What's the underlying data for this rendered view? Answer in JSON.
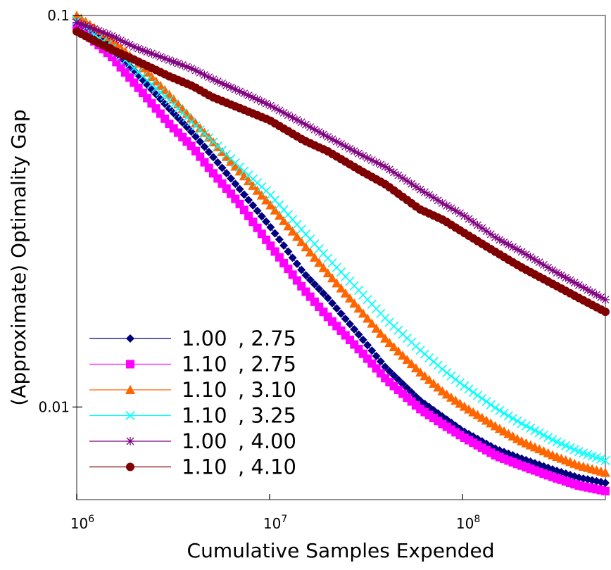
{
  "chart_data": {
    "type": "line",
    "title": "",
    "xlabel": "Cumulative Samples Expended",
    "ylabel": "(Approximate) Optimality Gap",
    "xscale": "log",
    "yscale": "log",
    "xlim": [
      1000000,
      550000000
    ],
    "ylim": [
      0.0058,
      0.1
    ],
    "x_ticks": [
      {
        "value": 1000000,
        "base": "10",
        "exp": "6"
      },
      {
        "value": 10000000,
        "base": "10",
        "exp": "7"
      },
      {
        "value": 100000000,
        "base": "10",
        "exp": "8"
      }
    ],
    "y_ticks": [
      {
        "value": 0.1,
        "label": "0.1"
      },
      {
        "value": 0.01,
        "label": "0.01"
      }
    ],
    "legend_position": "bottom-left",
    "series": [
      {
        "name_a": "1.00",
        "name_b": ", 2.75",
        "color": "#00007f",
        "marker": "diamond",
        "points": [
          [
            1000000,
            0.098
          ],
          [
            1500000,
            0.083
          ],
          [
            2000000,
            0.072
          ],
          [
            3000000,
            0.058
          ],
          [
            4000000,
            0.05
          ],
          [
            5000000,
            0.044
          ],
          [
            7000000,
            0.036
          ],
          [
            10000000,
            0.029
          ],
          [
            15000000,
            0.022
          ],
          [
            20000000,
            0.019
          ],
          [
            30000000,
            0.015
          ],
          [
            40000000,
            0.0126
          ],
          [
            60000000,
            0.0104
          ],
          [
            80000000,
            0.0094
          ],
          [
            100000000,
            0.0087
          ],
          [
            150000000,
            0.0078
          ],
          [
            200000000,
            0.0074
          ],
          [
            300000000,
            0.0069
          ],
          [
            400000000,
            0.0066
          ],
          [
            550000000,
            0.0064
          ]
        ]
      },
      {
        "name_a": "1.10",
        "name_b": ", 2.75",
        "color": "#ff00ff",
        "marker": "square",
        "points": [
          [
            1000000,
            0.094
          ],
          [
            1500000,
            0.079
          ],
          [
            2000000,
            0.067
          ],
          [
            3000000,
            0.053
          ],
          [
            4000000,
            0.046
          ],
          [
            5000000,
            0.04
          ],
          [
            7000000,
            0.033
          ],
          [
            10000000,
            0.026
          ],
          [
            15000000,
            0.02
          ],
          [
            20000000,
            0.017
          ],
          [
            30000000,
            0.0138
          ],
          [
            40000000,
            0.0118
          ],
          [
            60000000,
            0.0099
          ],
          [
            80000000,
            0.009
          ],
          [
            100000000,
            0.0084
          ],
          [
            150000000,
            0.0075
          ],
          [
            200000000,
            0.0071
          ],
          [
            300000000,
            0.0066
          ],
          [
            400000000,
            0.0063
          ],
          [
            550000000,
            0.0061
          ]
        ]
      },
      {
        "name_a": "1.10",
        "name_b": ", 3.10",
        "color": "#ff6600",
        "marker": "triangle",
        "points": [
          [
            1000000,
            0.1
          ],
          [
            1500000,
            0.087
          ],
          [
            2000000,
            0.077
          ],
          [
            3000000,
            0.063
          ],
          [
            4000000,
            0.054
          ],
          [
            5000000,
            0.048
          ],
          [
            7000000,
            0.04
          ],
          [
            10000000,
            0.033
          ],
          [
            15000000,
            0.026
          ],
          [
            20000000,
            0.022
          ],
          [
            30000000,
            0.0175
          ],
          [
            40000000,
            0.0149
          ],
          [
            60000000,
            0.0123
          ],
          [
            80000000,
            0.0109
          ],
          [
            100000000,
            0.0101
          ],
          [
            150000000,
            0.0089
          ],
          [
            200000000,
            0.0082
          ],
          [
            300000000,
            0.0075
          ],
          [
            400000000,
            0.0071
          ],
          [
            550000000,
            0.0068
          ]
        ]
      },
      {
        "name_a": "1.10",
        "name_b": ", 3.25",
        "color": "#00ffff",
        "marker": "x",
        "points": [
          [
            1000000,
            0.097
          ],
          [
            1500000,
            0.083
          ],
          [
            2000000,
            0.073
          ],
          [
            3000000,
            0.061
          ],
          [
            4000000,
            0.053
          ],
          [
            5000000,
            0.048
          ],
          [
            7000000,
            0.041
          ],
          [
            10000000,
            0.035
          ],
          [
            15000000,
            0.028
          ],
          [
            20000000,
            0.024
          ],
          [
            30000000,
            0.0195
          ],
          [
            40000000,
            0.0168
          ],
          [
            60000000,
            0.014
          ],
          [
            80000000,
            0.0124
          ],
          [
            100000000,
            0.0114
          ],
          [
            150000000,
            0.0099
          ],
          [
            200000000,
            0.0091
          ],
          [
            300000000,
            0.0082
          ],
          [
            400000000,
            0.0077
          ],
          [
            550000000,
            0.0073
          ]
        ]
      },
      {
        "name_a": "1.00",
        "name_b": ", 4.00",
        "color": "#7f007f",
        "marker": "star",
        "points": [
          [
            1000000,
            0.096
          ],
          [
            1500000,
            0.089
          ],
          [
            2000000,
            0.083
          ],
          [
            3000000,
            0.077
          ],
          [
            4000000,
            0.073
          ],
          [
            5000000,
            0.069
          ],
          [
            7000000,
            0.064
          ],
          [
            10000000,
            0.059
          ],
          [
            15000000,
            0.053
          ],
          [
            20000000,
            0.049
          ],
          [
            30000000,
            0.044
          ],
          [
            40000000,
            0.041
          ],
          [
            60000000,
            0.036
          ],
          [
            80000000,
            0.033
          ],
          [
            100000000,
            0.031
          ],
          [
            150000000,
            0.027
          ],
          [
            200000000,
            0.025
          ],
          [
            300000000,
            0.0222
          ],
          [
            400000000,
            0.0205
          ],
          [
            550000000,
            0.0188
          ]
        ]
      },
      {
        "name_a": "1.10",
        "name_b": ", 4.10",
        "color": "#7f0000",
        "marker": "circle",
        "points": [
          [
            1000000,
            0.091
          ],
          [
            1500000,
            0.082
          ],
          [
            2000000,
            0.077
          ],
          [
            3000000,
            0.07
          ],
          [
            4000000,
            0.066
          ],
          [
            5000000,
            0.062
          ],
          [
            7000000,
            0.058
          ],
          [
            10000000,
            0.054
          ],
          [
            15000000,
            0.048
          ],
          [
            20000000,
            0.045
          ],
          [
            30000000,
            0.04
          ],
          [
            40000000,
            0.037
          ],
          [
            60000000,
            0.032
          ],
          [
            80000000,
            0.03
          ],
          [
            100000000,
            0.028
          ],
          [
            150000000,
            0.0248
          ],
          [
            200000000,
            0.0228
          ],
          [
            300000000,
            0.0205
          ],
          [
            400000000,
            0.019
          ],
          [
            550000000,
            0.0175
          ]
        ]
      }
    ]
  }
}
